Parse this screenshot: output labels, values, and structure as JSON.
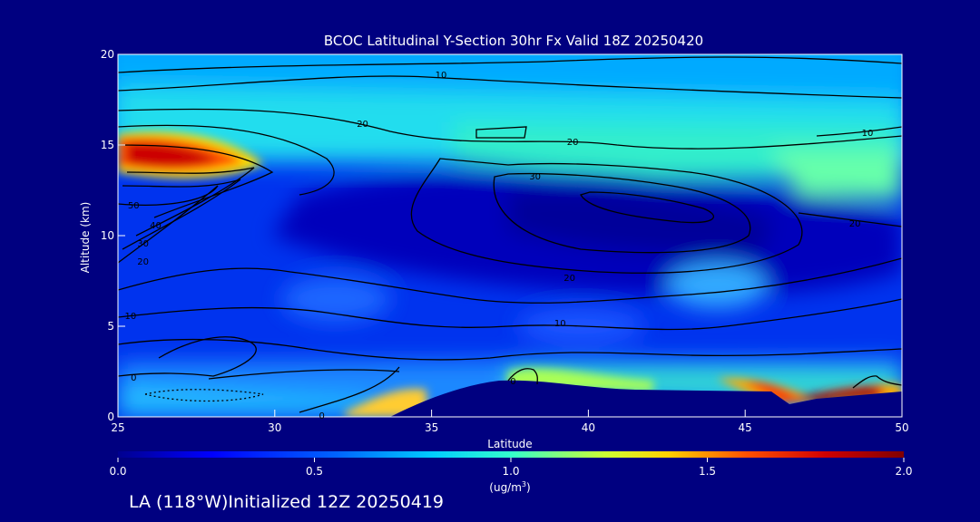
{
  "chart_data": {
    "type": "heatmap",
    "title": "BCOC Latitudinal Y-Section 30hr  Fx Valid 18Z 20250420",
    "xlabel": "Latitude",
    "ylabel": "Altitude (km)",
    "xlim": [
      25,
      50
    ],
    "ylim": [
      0,
      20
    ],
    "x_ticks": [
      "25",
      "30",
      "35",
      "40",
      "45",
      "50"
    ],
    "y_ticks": [
      "0",
      "5",
      "10",
      "15",
      "20"
    ],
    "x_tick_values": [
      25,
      30,
      35,
      40,
      45,
      50
    ],
    "y_tick_values": [
      0,
      5,
      10,
      15,
      20
    ],
    "colorbar": {
      "min": 0.0,
      "max": 2.0,
      "tick_labels": [
        "0.0",
        "0.5",
        "1.0",
        "1.5",
        "2.0"
      ],
      "tick_values": [
        0.0,
        0.5,
        1.0,
        1.5,
        2.0
      ],
      "unit_label": "(ug/m",
      "unit_superscript": "3",
      "unit_close": ")"
    },
    "contour_labels": [
      {
        "text": "10",
        "x": 35.3,
        "y": 18.9
      },
      {
        "text": "20",
        "x": 32.8,
        "y": 16.2
      },
      {
        "text": "20",
        "x": 39.5,
        "y": 15.2
      },
      {
        "text": "10",
        "x": 48.9,
        "y": 15.7
      },
      {
        "text": "30",
        "x": 38.3,
        "y": 13.3
      },
      {
        "text": "50",
        "x": 25.5,
        "y": 11.7
      },
      {
        "text": "40",
        "x": 26.2,
        "y": 10.6
      },
      {
        "text": "30",
        "x": 25.8,
        "y": 9.6
      },
      {
        "text": "20",
        "x": 25.8,
        "y": 8.6
      },
      {
        "text": "20",
        "x": 48.5,
        "y": 10.7
      },
      {
        "text": "20",
        "x": 39.4,
        "y": 7.7
      },
      {
        "text": "10",
        "x": 25.4,
        "y": 5.6
      },
      {
        "text": "10",
        "x": 39.1,
        "y": 5.2
      },
      {
        "text": "0",
        "x": 25.5,
        "y": 2.2
      },
      {
        "text": "0",
        "x": 37.6,
        "y": 2.0
      },
      {
        "text": "0",
        "x": 31.5,
        "y": 0.1
      }
    ],
    "colors": {
      "background": "#000080",
      "colormap": [
        "#00008f",
        "#0022ff",
        "#00aaff",
        "#33ffcc",
        "#ccff33",
        "#ffd000",
        "#ff4400",
        "#c00000",
        "#800000"
      ]
    }
  },
  "footer": {
    "text": "LA (118°W)Initialized 12Z 20250419"
  }
}
